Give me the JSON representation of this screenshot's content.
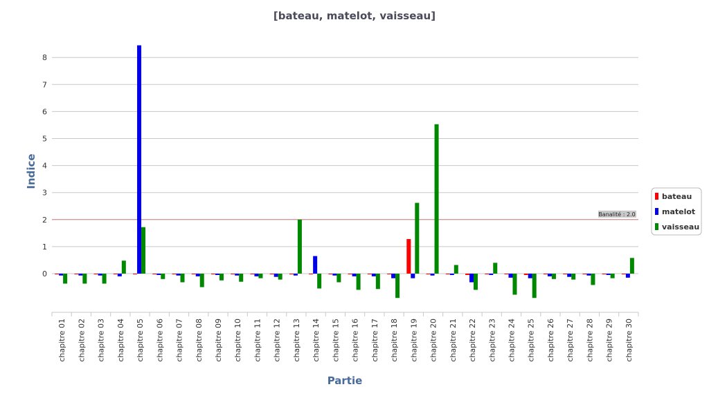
{
  "chart_data": {
    "type": "bar",
    "title": "[bateau, matelot, vaisseau]",
    "xlabel": "Partie",
    "ylabel": "Indice",
    "ylim": [
      -1.4,
      8.6
    ],
    "yticks": [
      0,
      1,
      2,
      3,
      4,
      5,
      6,
      7,
      8
    ],
    "grid": true,
    "legend_position": "right",
    "categories": [
      "chapitre 01",
      "chapitre 02",
      "chapitre 03",
      "chapitre 04",
      "chapitre 05",
      "chapitre  06",
      "chapitre 07",
      "chapitre 08",
      "chapitre 09",
      "chapitre 10",
      "chapitre 11",
      "chapitre 12",
      "chapitre 13",
      "chapitre 14",
      "chapitre 15",
      "chapitre 16",
      "chapitre 17",
      "chapitre 18",
      "chapitre 19",
      "chapitre 20",
      "chapitre 21",
      "chapitre 22",
      "chapitre 23",
      "chapitre 24",
      "chapitre 25",
      "chapitre 26",
      "chapitre 27",
      "chapitre 28",
      "chapitre 29",
      "chapitre 30"
    ],
    "series": [
      {
        "name": "bateau",
        "color": "#ff0000",
        "values": [
          -0.02,
          -0.02,
          -0.02,
          -0.02,
          -0.02,
          -0.02,
          -0.02,
          -0.02,
          -0.02,
          -0.02,
          -0.02,
          -0.02,
          -0.02,
          -0.02,
          -0.02,
          -0.02,
          -0.02,
          -0.02,
          1.28,
          -0.02,
          -0.02,
          -0.05,
          -0.02,
          -0.02,
          -0.05,
          -0.02,
          -0.02,
          -0.02,
          -0.02,
          -0.02
        ]
      },
      {
        "name": "matelot",
        "color": "#0000e6",
        "values": [
          -0.07,
          -0.07,
          -0.07,
          -0.1,
          8.45,
          -0.05,
          -0.07,
          -0.1,
          -0.05,
          -0.07,
          -0.1,
          -0.12,
          -0.07,
          0.65,
          -0.07,
          -0.1,
          -0.1,
          -0.17,
          -0.17,
          -0.07,
          -0.05,
          -0.32,
          -0.05,
          -0.15,
          -0.17,
          -0.1,
          -0.12,
          -0.07,
          -0.05,
          -0.15
        ]
      },
      {
        "name": "vaisseau",
        "color": "#008800",
        "values": [
          -0.37,
          -0.37,
          -0.37,
          0.48,
          1.72,
          -0.2,
          -0.32,
          -0.5,
          -0.25,
          -0.3,
          -0.17,
          -0.22,
          2.0,
          -0.55,
          -0.32,
          -0.6,
          -0.57,
          -0.9,
          2.62,
          5.53,
          0.32,
          -0.6,
          0.4,
          -0.78,
          -0.9,
          -0.2,
          -0.22,
          -0.42,
          -0.17,
          0.58
        ]
      }
    ],
    "reference_line": {
      "value": 2.0,
      "label": "Banalité : 2.0",
      "color": "#d08080"
    }
  }
}
